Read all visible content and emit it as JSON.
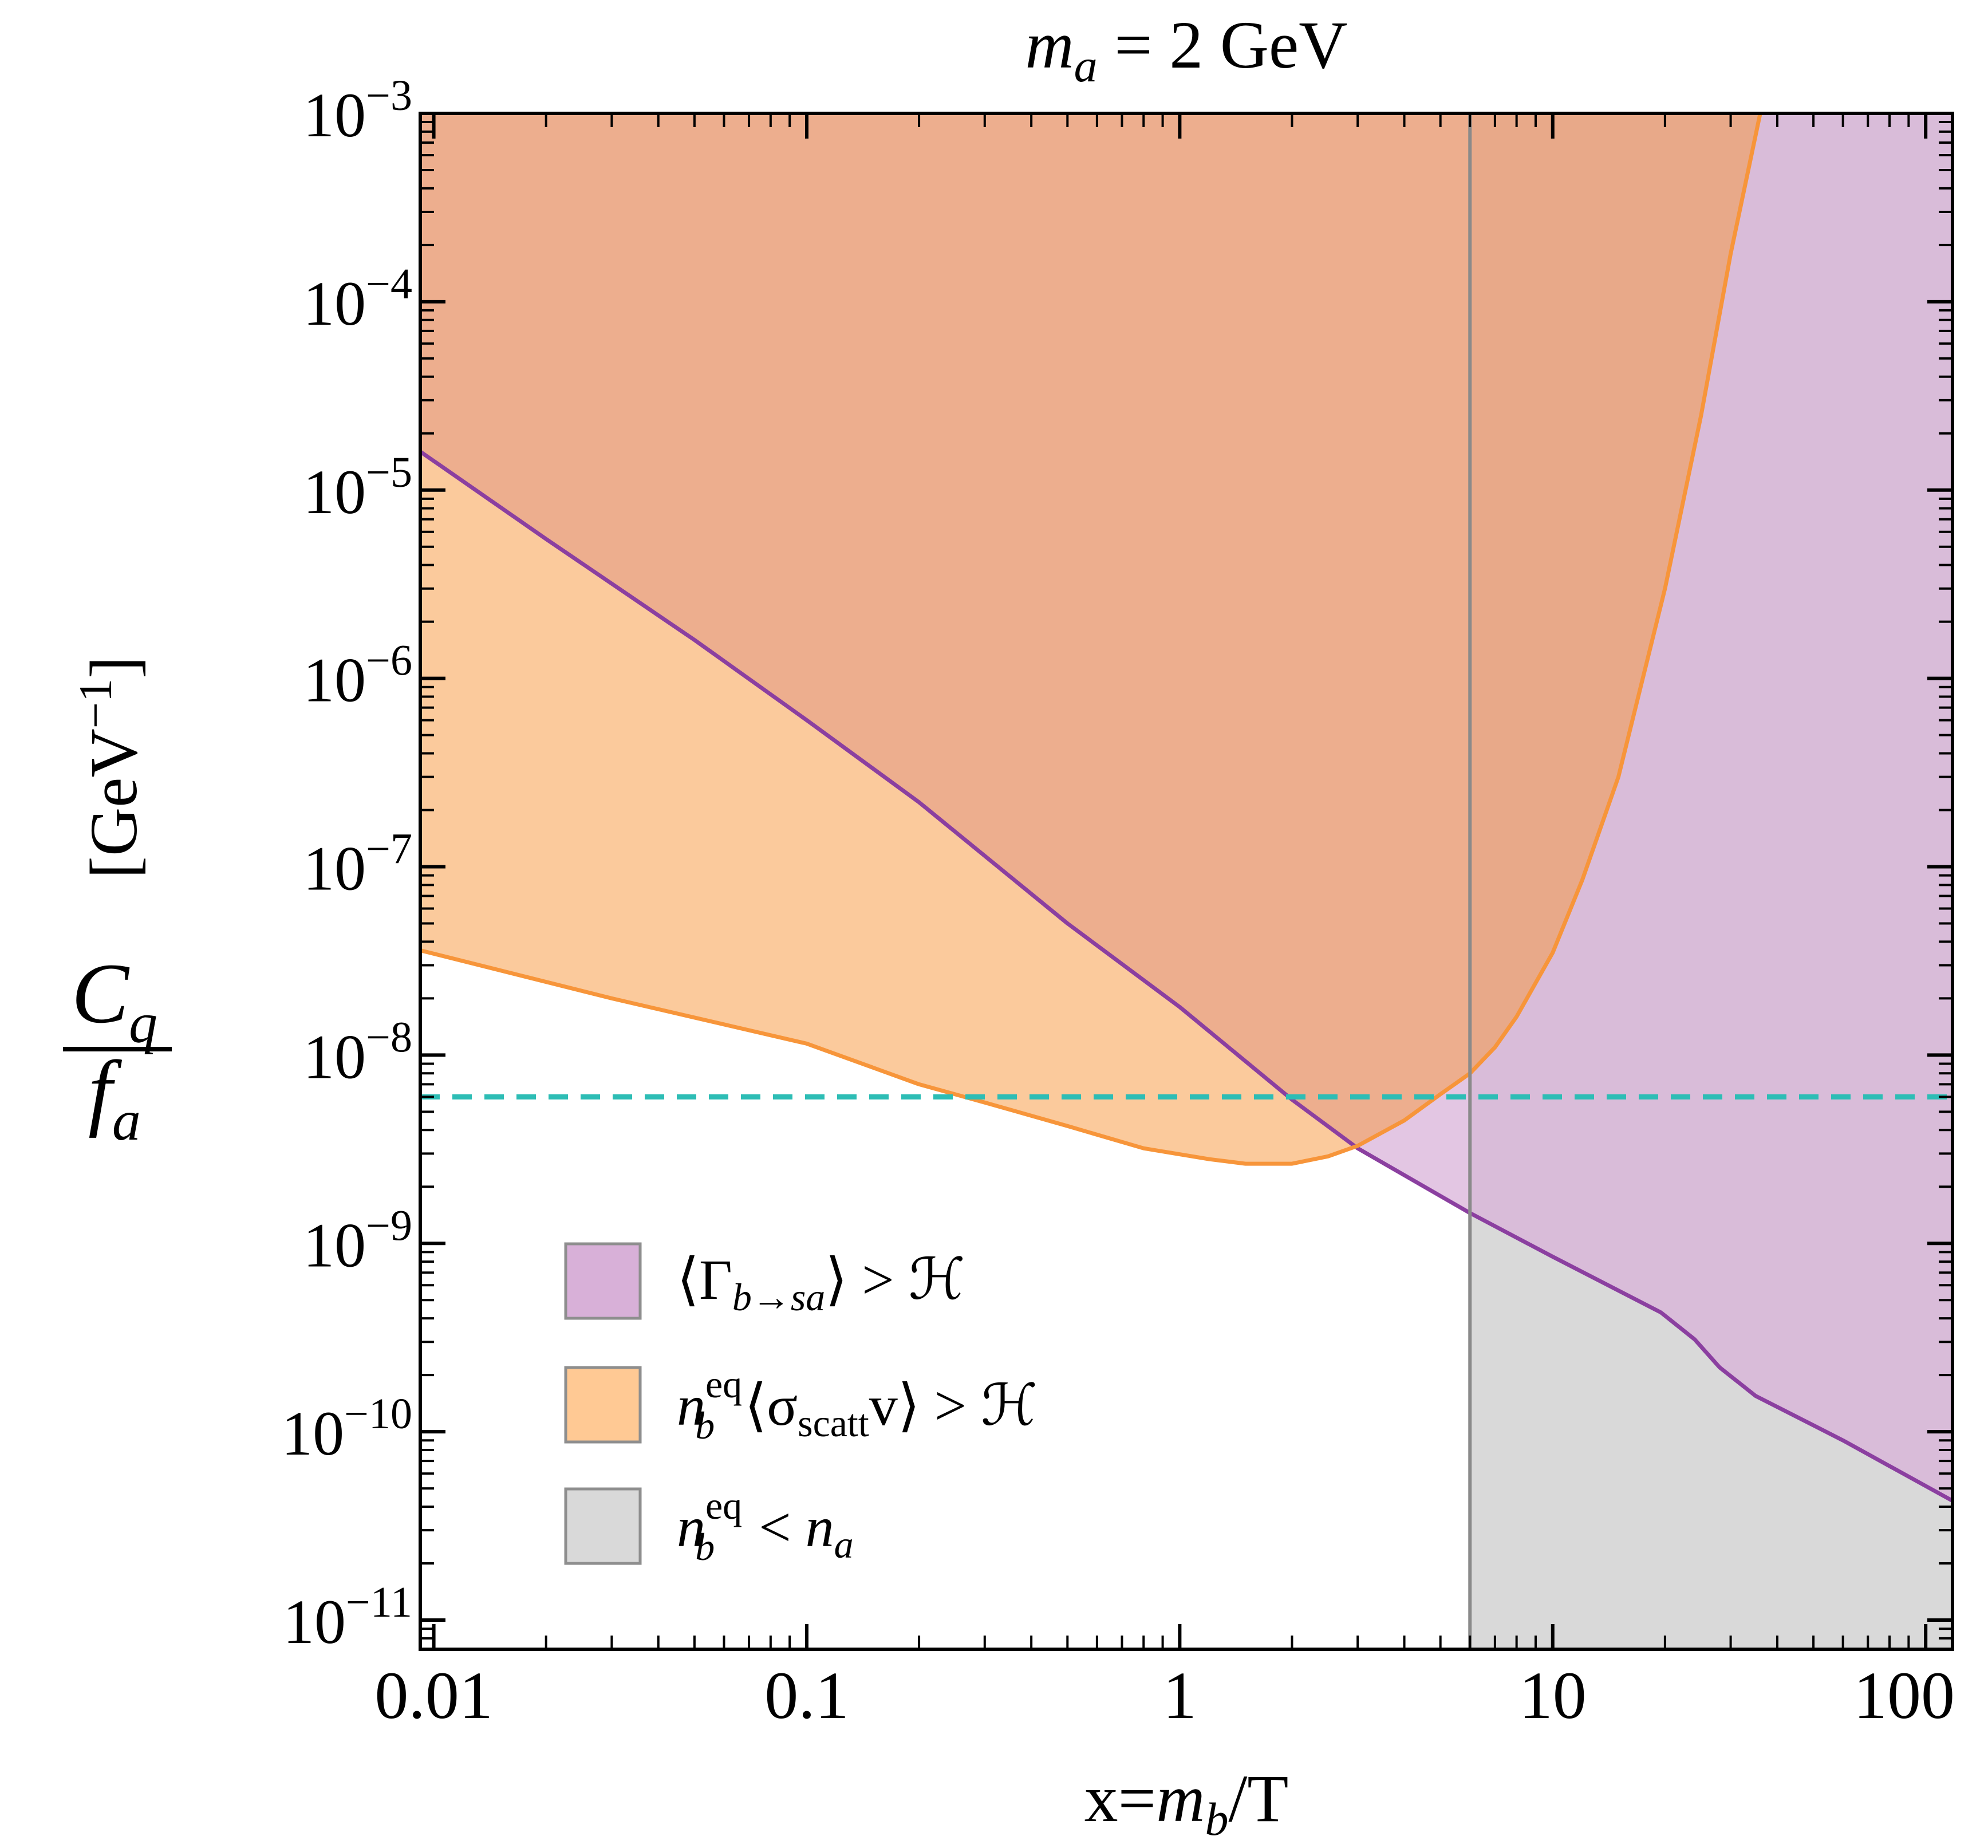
{
  "chart_data": {
    "type": "area",
    "title": {
      "var": "m",
      "sub": "a",
      "rest": " = 2 GeV"
    },
    "x_axis": {
      "label": {
        "pre": "x=",
        "var": "m",
        "sub": "b",
        "post": "/T"
      },
      "scale": "log",
      "range": [
        0.0092,
        118
      ],
      "ticks": [
        {
          "value": 0.01,
          "label": "0.01"
        },
        {
          "value": 0.1,
          "label": "0.1"
        },
        {
          "value": 1,
          "label": "1"
        },
        {
          "value": 10,
          "label": "10"
        },
        {
          "value": 100,
          "label": "100"
        }
      ]
    },
    "y_axis": {
      "label": {
        "num_var": "C",
        "num_sub": "q",
        "den_var": "f",
        "den_sub": "a",
        "unit": "[GeV",
        "unit_exp": "−1",
        "unit_close": "]"
      },
      "scale": "log",
      "range": [
        7e-12,
        0.001
      ],
      "ticks": [
        {
          "value": 0.001,
          "base": "10",
          "exp": "−3"
        },
        {
          "value": 0.0001,
          "base": "10",
          "exp": "−4"
        },
        {
          "value": 1e-05,
          "base": "10",
          "exp": "−5"
        },
        {
          "value": 1e-06,
          "base": "10",
          "exp": "−6"
        },
        {
          "value": 1e-07,
          "base": "10",
          "exp": "−7"
        },
        {
          "value": 1e-08,
          "base": "10",
          "exp": "−8"
        },
        {
          "value": 1e-09,
          "base": "10",
          "exp": "−9"
        },
        {
          "value": 1e-10,
          "base": "10",
          "exp": "−10"
        },
        {
          "value": 1e-11,
          "base": "10",
          "exp": "−11"
        }
      ]
    },
    "grid": false,
    "legend_position": "bottom-left",
    "regions": [
      {
        "key": "decay",
        "fill": "#d8b0d8",
        "stroke": "#8b3fa0",
        "legend": {
          "pre": "⟨Γ",
          "sub": "b→sa",
          "post": "⟩ > ℋ"
        },
        "boundary": [
          [
            0.0092,
            1.6e-05
          ],
          [
            0.02,
            5.5e-06
          ],
          [
            0.05,
            1.6e-06
          ],
          [
            0.1,
            6e-07
          ],
          [
            0.2,
            2.2e-07
          ],
          [
            0.5,
            5e-08
          ],
          [
            1,
            1.8e-08
          ],
          [
            2,
            5.8e-09
          ],
          [
            3,
            3.2e-09
          ],
          [
            6,
            1.45e-09
          ],
          [
            10,
            8.5e-10
          ],
          [
            19.5,
            4.3e-10
          ],
          [
            24,
            3.1e-10
          ],
          [
            28,
            2.2e-10
          ],
          [
            35,
            1.55e-10
          ],
          [
            60,
            9e-11
          ],
          [
            118,
            4.3e-11
          ]
        ]
      },
      {
        "key": "scatt",
        "fill": "#ffc994",
        "stroke": "#f7953a",
        "legend": {
          "pre": "n",
          "sup": "eq",
          "sub": "b",
          "post1": "⟨σ",
          "sub2": "scatt",
          "post2": "v⟩ > ℋ"
        },
        "lower_boundary": [
          [
            0.0092,
            3.6e-08
          ],
          [
            0.03,
            2e-08
          ],
          [
            0.1,
            1.15e-08
          ],
          [
            0.2,
            7e-09
          ],
          [
            0.3,
            5.6e-09
          ],
          [
            0.5,
            4.2e-09
          ],
          [
            0.8,
            3.2e-09
          ],
          [
            1.2,
            2.8e-09
          ],
          [
            1.5,
            2.65e-09
          ],
          [
            2,
            2.65e-09
          ],
          [
            2.5,
            2.9e-09
          ],
          [
            3,
            3.3e-09
          ],
          [
            4,
            4.5e-09
          ],
          [
            5,
            6.2e-09
          ],
          [
            6,
            8e-09
          ],
          [
            7,
            1.1e-08
          ],
          [
            8,
            1.6e-08
          ],
          [
            10,
            3.5e-08
          ],
          [
            12,
            8.5e-08
          ],
          [
            15,
            3e-07
          ],
          [
            20,
            3e-06
          ],
          [
            25,
            2.5e-05
          ],
          [
            30,
            0.00018
          ],
          [
            36,
            0.001
          ]
        ]
      },
      {
        "key": "gray",
        "fill": "#d9d9d9",
        "stroke": "#8a8a8a",
        "legend": {
          "pre": "n",
          "sup": "eq",
          "sub": "b",
          "post1": " < ",
          "var": "n",
          "sub2": "a"
        },
        "x_min": 6.0
      }
    ],
    "reference_line": {
      "value": 6e-09,
      "color": "#2dbdb5",
      "style": "dashed"
    }
  }
}
